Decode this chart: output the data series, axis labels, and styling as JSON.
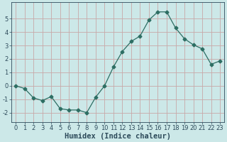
{
  "x": [
    0,
    1,
    2,
    3,
    4,
    5,
    6,
    7,
    8,
    9,
    10,
    11,
    12,
    13,
    14,
    15,
    16,
    17,
    18,
    19,
    20,
    21,
    22,
    23
  ],
  "y": [
    0.0,
    -0.2,
    -0.9,
    -1.1,
    -0.8,
    -1.7,
    -1.8,
    -1.8,
    -2.0,
    -0.85,
    0.0,
    1.4,
    2.55,
    3.3,
    3.7,
    4.9,
    5.5,
    5.5,
    4.3,
    3.5,
    3.05,
    2.75,
    1.6,
    1.85
  ],
  "line_color": "#2d6e63",
  "marker": "D",
  "marker_size": 2.5,
  "bg_color": "#cce8e8",
  "grid_color": "#c8a8a8",
  "xlabel": "Humidex (Indice chaleur)",
  "ylim": [
    -2.7,
    6.2
  ],
  "xlim": [
    -0.5,
    23.5
  ],
  "xticks": [
    0,
    1,
    2,
    3,
    4,
    5,
    6,
    7,
    8,
    9,
    10,
    11,
    12,
    13,
    14,
    15,
    16,
    17,
    18,
    19,
    20,
    21,
    22,
    23
  ],
  "yticks": [
    -2,
    -1,
    0,
    1,
    2,
    3,
    4,
    5
  ],
  "tick_fontsize": 6.0,
  "xlabel_fontsize": 7.5,
  "font_color": "#2d4a5a"
}
